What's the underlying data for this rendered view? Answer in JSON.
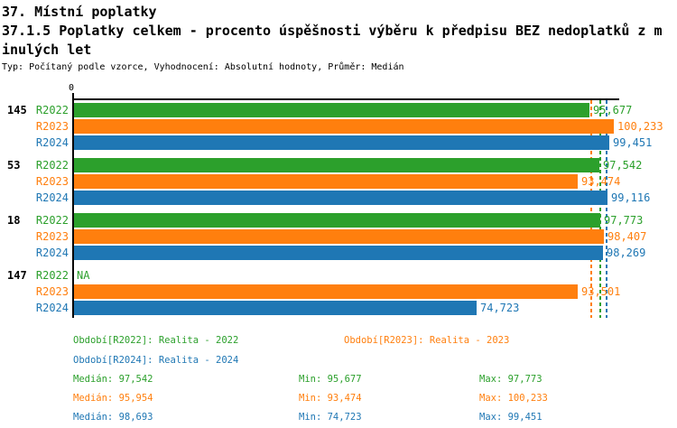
{
  "header": {
    "line1": "37. Místní poplatky",
    "line2": "37.1.5 Poplatky celkem - procento úspěšnosti výběru k předpisu BEZ nedoplatků z m",
    "line3": "inulých let",
    "meta": "Typ: Počítaný podle vzorce, Vyhodnocení: Absolutní hodnoty, Průměr: Medián"
  },
  "colors": {
    "series": {
      "R2022": "#2ca02c",
      "R2023": "#ff7f0e",
      "R2024": "#1f77b4"
    },
    "axis": "#000000"
  },
  "chart_data": {
    "type": "bar",
    "orientation": "horizontal",
    "title": "37.1.5 Poplatky celkem - procento úspěšnosti výběru k předpisu BEZ nedoplatků z minulých let",
    "xlabel": "",
    "ylabel": "",
    "x_axis": {
      "origin_label": "0",
      "range_estimate": [
        0,
        101300
      ],
      "grid": false
    },
    "series_names": [
      "R2022",
      "R2023",
      "R2024"
    ],
    "groups": [
      {
        "label": "145",
        "bars": [
          {
            "series": "R2022",
            "value": 95677,
            "display": "95,677"
          },
          {
            "series": "R2023",
            "value": 100233,
            "display": "100,233"
          },
          {
            "series": "R2024",
            "value": 99451,
            "display": "99,451"
          }
        ]
      },
      {
        "label": "53",
        "bars": [
          {
            "series": "R2022",
            "value": 97542,
            "display": "97,542"
          },
          {
            "series": "R2023",
            "value": 93474,
            "display": "93,474"
          },
          {
            "series": "R2024",
            "value": 99116,
            "display": "99,116"
          }
        ]
      },
      {
        "label": "18",
        "bars": [
          {
            "series": "R2022",
            "value": 97773,
            "display": "97,773"
          },
          {
            "series": "R2023",
            "value": 98407,
            "display": "98,407"
          },
          {
            "series": "R2024",
            "value": 98269,
            "display": "98,269"
          }
        ]
      },
      {
        "label": "147",
        "bars": [
          {
            "series": "R2022",
            "value": null,
            "display": "NA"
          },
          {
            "series": "R2023",
            "value": 93501,
            "display": "93,501"
          },
          {
            "series": "R2024",
            "value": 74723,
            "display": "74,723"
          }
        ]
      }
    ],
    "median_lines": {
      "R2022": 97542,
      "R2023": 95954,
      "R2024": 98693
    },
    "legend_position": "bottom"
  },
  "legend": {
    "periods": [
      {
        "series": "R2022",
        "label": "Období[R2022]: Realita - 2022"
      },
      {
        "series": "R2023",
        "label": "Období[R2023]: Realita - 2023"
      },
      {
        "series": "R2024",
        "label": "Období[R2024]: Realita - 2024"
      }
    ],
    "stats": [
      {
        "series": "R2022",
        "median": "Medián: 97,542",
        "min": "Min: 95,677",
        "max": "Max: 97,773"
      },
      {
        "series": "R2023",
        "median": "Medián: 95,954",
        "min": "Min: 93,474",
        "max": "Max: 100,233"
      },
      {
        "series": "R2024",
        "median": "Medián: 98,693",
        "min": "Min: 74,723",
        "max": "Max: 99,451"
      }
    ]
  }
}
